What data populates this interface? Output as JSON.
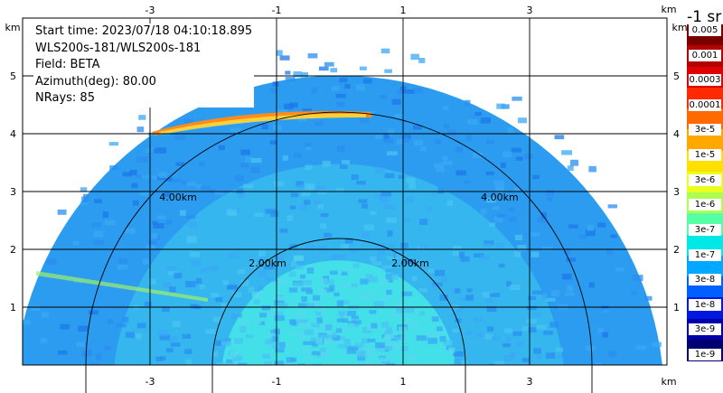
{
  "info": {
    "start_time": "Start time: 2023/07/18 04:10:18.895",
    "instrument": "WLS200s-181/WLS200s-181",
    "field": "Field: BETA",
    "azimuth": "Azimuth(deg): 80.00",
    "nrays": "NRays: 85"
  },
  "axes": {
    "unit": "km",
    "x_ticks": [
      "-3",
      "-1",
      "1",
      "3"
    ],
    "y_ticks": [
      "1",
      "2",
      "3",
      "4",
      "5"
    ]
  },
  "range_rings": [
    "2.00km",
    "4.00km"
  ],
  "colorbar": {
    "title": "-1 sr",
    "labels": [
      "0.005",
      "0.001",
      "0.0003",
      "0.0001",
      "3e-5",
      "1e-5",
      "3e-6",
      "1e-6",
      "3e-7",
      "1e-7",
      "3e-8",
      "1e-8",
      "3e-9",
      "1e-9"
    ],
    "colors": [
      "#7a0000",
      "#b30000",
      "#e00000",
      "#ff2a00",
      "#ff6a00",
      "#ffa800",
      "#ffe000",
      "#e8ff20",
      "#aaff50",
      "#55ffa5",
      "#00e8e8",
      "#00a8ff",
      "#0060ff",
      "#0018e0",
      "#0000a8",
      "#000070"
    ]
  }
}
